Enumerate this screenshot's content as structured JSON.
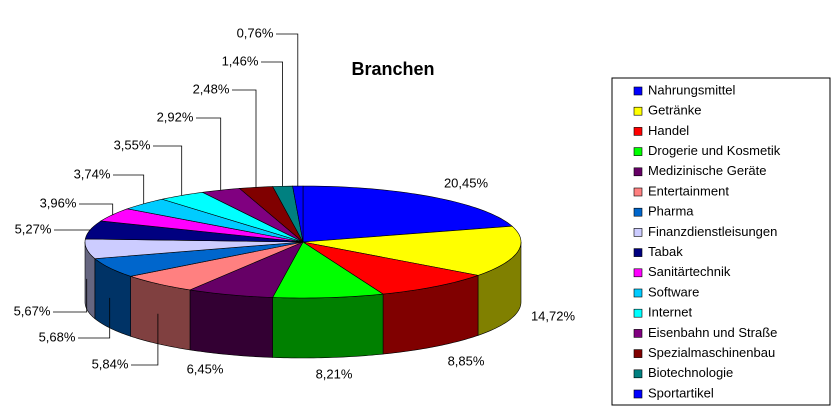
{
  "chart_data": {
    "type": "pie3d",
    "title": "Branchen",
    "categories": [
      "Nahrungsmittel",
      "Getränke",
      "Handel",
      "Drogerie und Kosmetik",
      "Medizinische Geräte",
      "Entertainment",
      "Pharma",
      "Finanzdienstleisungen",
      "Tabak",
      "Sanitärtechnik",
      "Software",
      "Internet",
      "Eisenbahn und Straße",
      "Spezialmaschinenbau",
      "Biotechnologie",
      "Sportartikel"
    ],
    "values": [
      20.45,
      14.72,
      8.85,
      8.21,
      6.45,
      5.84,
      5.68,
      5.67,
      5.27,
      3.96,
      3.74,
      3.55,
      2.92,
      2.48,
      1.46,
      0.76
    ],
    "value_labels": [
      "20,45%",
      "14,72%",
      "8,85%",
      "8,21%",
      "6,45%",
      "5,84%",
      "5,68%",
      "5,67%",
      "5,27%",
      "3,96%",
      "3,74%",
      "3,55%",
      "2,92%",
      "2,48%",
      "1,46%",
      "0,76%"
    ],
    "colors": [
      "#0000ff",
      "#ffff00",
      "#ff0000",
      "#00ff00",
      "#660066",
      "#ff8080",
      "#0066cc",
      "#ccccff",
      "#000080",
      "#ff00ff",
      "#00ccff",
      "#00ffff",
      "#800080",
      "#800000",
      "#008080",
      "#0000ff"
    ],
    "legend": "right"
  }
}
